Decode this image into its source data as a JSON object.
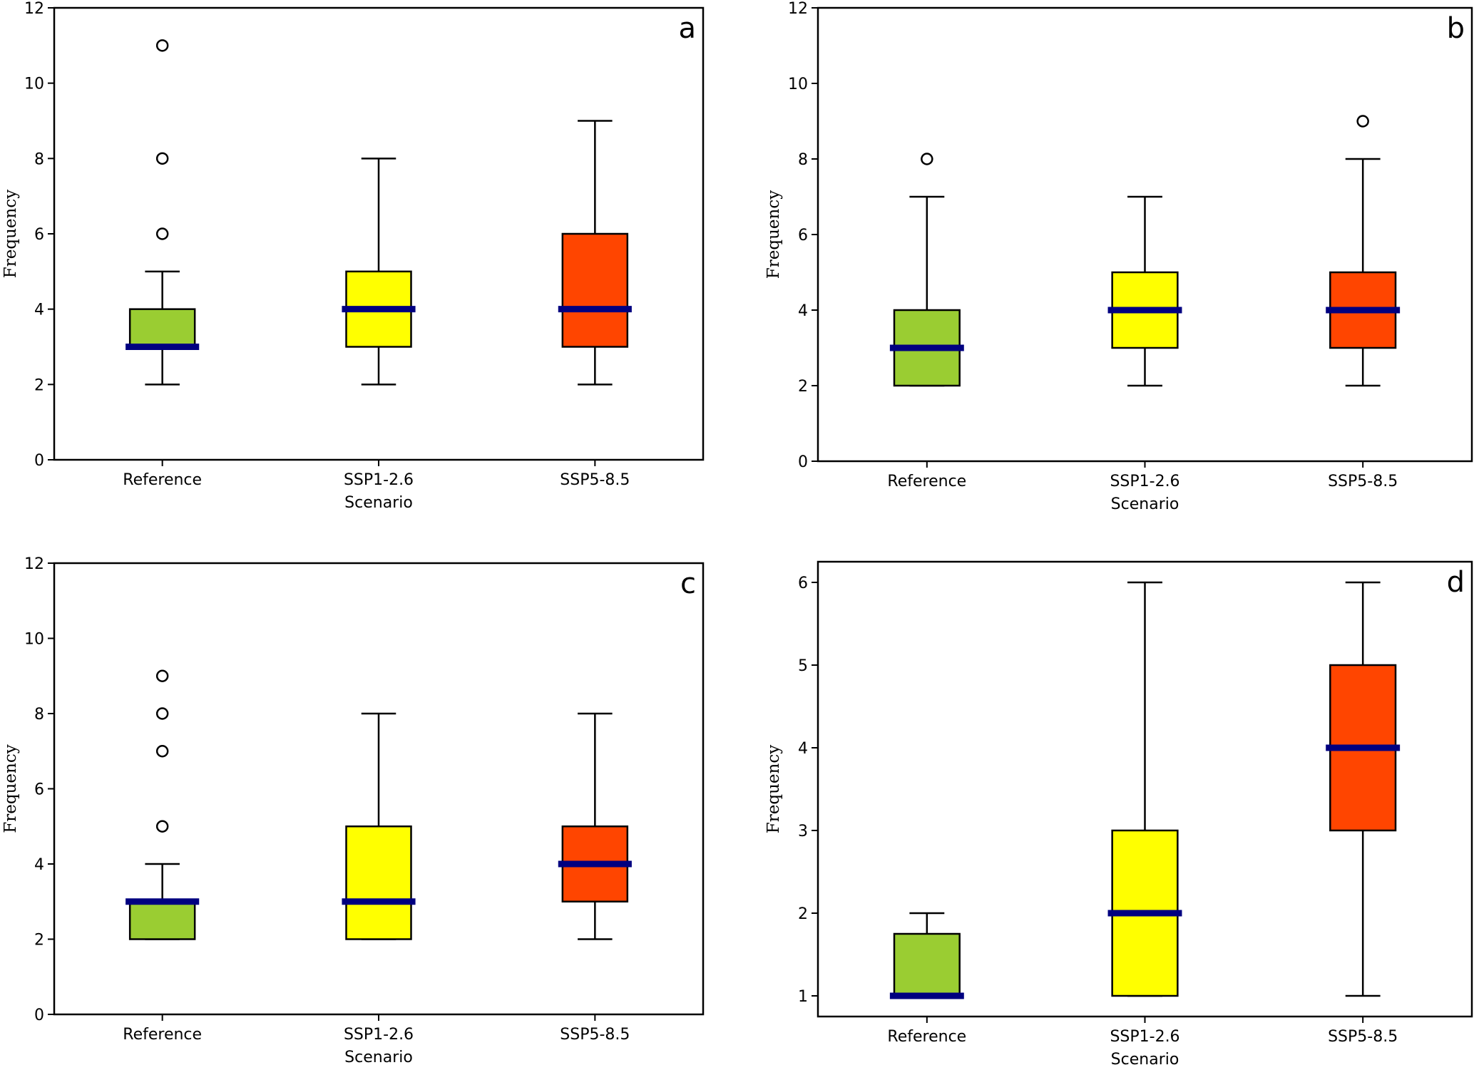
{
  "colors": {
    "Reference": "#9acd32",
    "SSP1-2.6": "#ffff00",
    "SSP5-8.5": "#ff4500",
    "median": "#000080",
    "outline": "#000000"
  },
  "chart_data": [
    {
      "type": "box",
      "panel_label": "a",
      "categories": [
        "Reference",
        "SSP1-2.6",
        "SSP5-8.5"
      ],
      "xlabel": "Scenario",
      "ylabel": "Frequency",
      "ylim": [
        0,
        12
      ],
      "yticks": [
        0,
        2,
        4,
        6,
        8,
        10,
        12
      ],
      "grid": false,
      "boxes": [
        {
          "whislo": 2,
          "q1": 3,
          "med": 3,
          "q3": 4,
          "whishi": 5,
          "fliers": [
            6,
            8,
            11
          ]
        },
        {
          "whislo": 2,
          "q1": 3,
          "med": 4,
          "q3": 5,
          "whishi": 8,
          "fliers": []
        },
        {
          "whislo": 2,
          "q1": 3,
          "med": 4,
          "q3": 6,
          "whishi": 9,
          "fliers": []
        }
      ]
    },
    {
      "type": "box",
      "panel_label": "b",
      "categories": [
        "Reference",
        "SSP1-2.6",
        "SSP5-8.5"
      ],
      "xlabel": "Scenario",
      "ylabel": "Frequency",
      "ylim": [
        0,
        12
      ],
      "yticks": [
        0,
        2,
        4,
        6,
        8,
        10,
        12
      ],
      "grid": false,
      "boxes": [
        {
          "whislo": 2,
          "q1": 2,
          "med": 3,
          "q3": 4,
          "whishi": 7,
          "fliers": [
            8
          ]
        },
        {
          "whislo": 2,
          "q1": 3,
          "med": 4,
          "q3": 5,
          "whishi": 7,
          "fliers": []
        },
        {
          "whislo": 2,
          "q1": 3,
          "med": 4,
          "q3": 5,
          "whishi": 8,
          "fliers": [
            9
          ]
        }
      ]
    },
    {
      "type": "box",
      "panel_label": "c",
      "categories": [
        "Reference",
        "SSP1-2.6",
        "SSP5-8.5"
      ],
      "xlabel": "Scenario",
      "ylabel": "Frequency",
      "ylim": [
        0,
        12
      ],
      "yticks": [
        0,
        2,
        4,
        6,
        8,
        10,
        12
      ],
      "grid": false,
      "boxes": [
        {
          "whislo": 2,
          "q1": 2,
          "med": 3,
          "q3": 3,
          "whishi": 4,
          "fliers": [
            5,
            7,
            8,
            9
          ]
        },
        {
          "whislo": 2,
          "q1": 2,
          "med": 3,
          "q3": 5,
          "whishi": 8,
          "fliers": []
        },
        {
          "whislo": 2,
          "q1": 3,
          "med": 4,
          "q3": 5,
          "whishi": 8,
          "fliers": []
        }
      ]
    },
    {
      "type": "box",
      "panel_label": "d",
      "categories": [
        "Reference",
        "SSP1-2.6",
        "SSP5-8.5"
      ],
      "xlabel": "Scenario",
      "ylabel": "Frequency",
      "ylim": [
        0.75,
        6.25
      ],
      "yticks": [
        1,
        2,
        3,
        4,
        5,
        6
      ],
      "grid": false,
      "boxes": [
        {
          "whislo": 1,
          "q1": 1,
          "med": 1,
          "q3": 1.75,
          "whishi": 2,
          "fliers": []
        },
        {
          "whislo": 1,
          "q1": 1,
          "med": 2,
          "q3": 3,
          "whishi": 6,
          "fliers": []
        },
        {
          "whislo": 1,
          "q1": 3,
          "med": 4,
          "q3": 5,
          "whishi": 6,
          "fliers": []
        }
      ]
    }
  ]
}
